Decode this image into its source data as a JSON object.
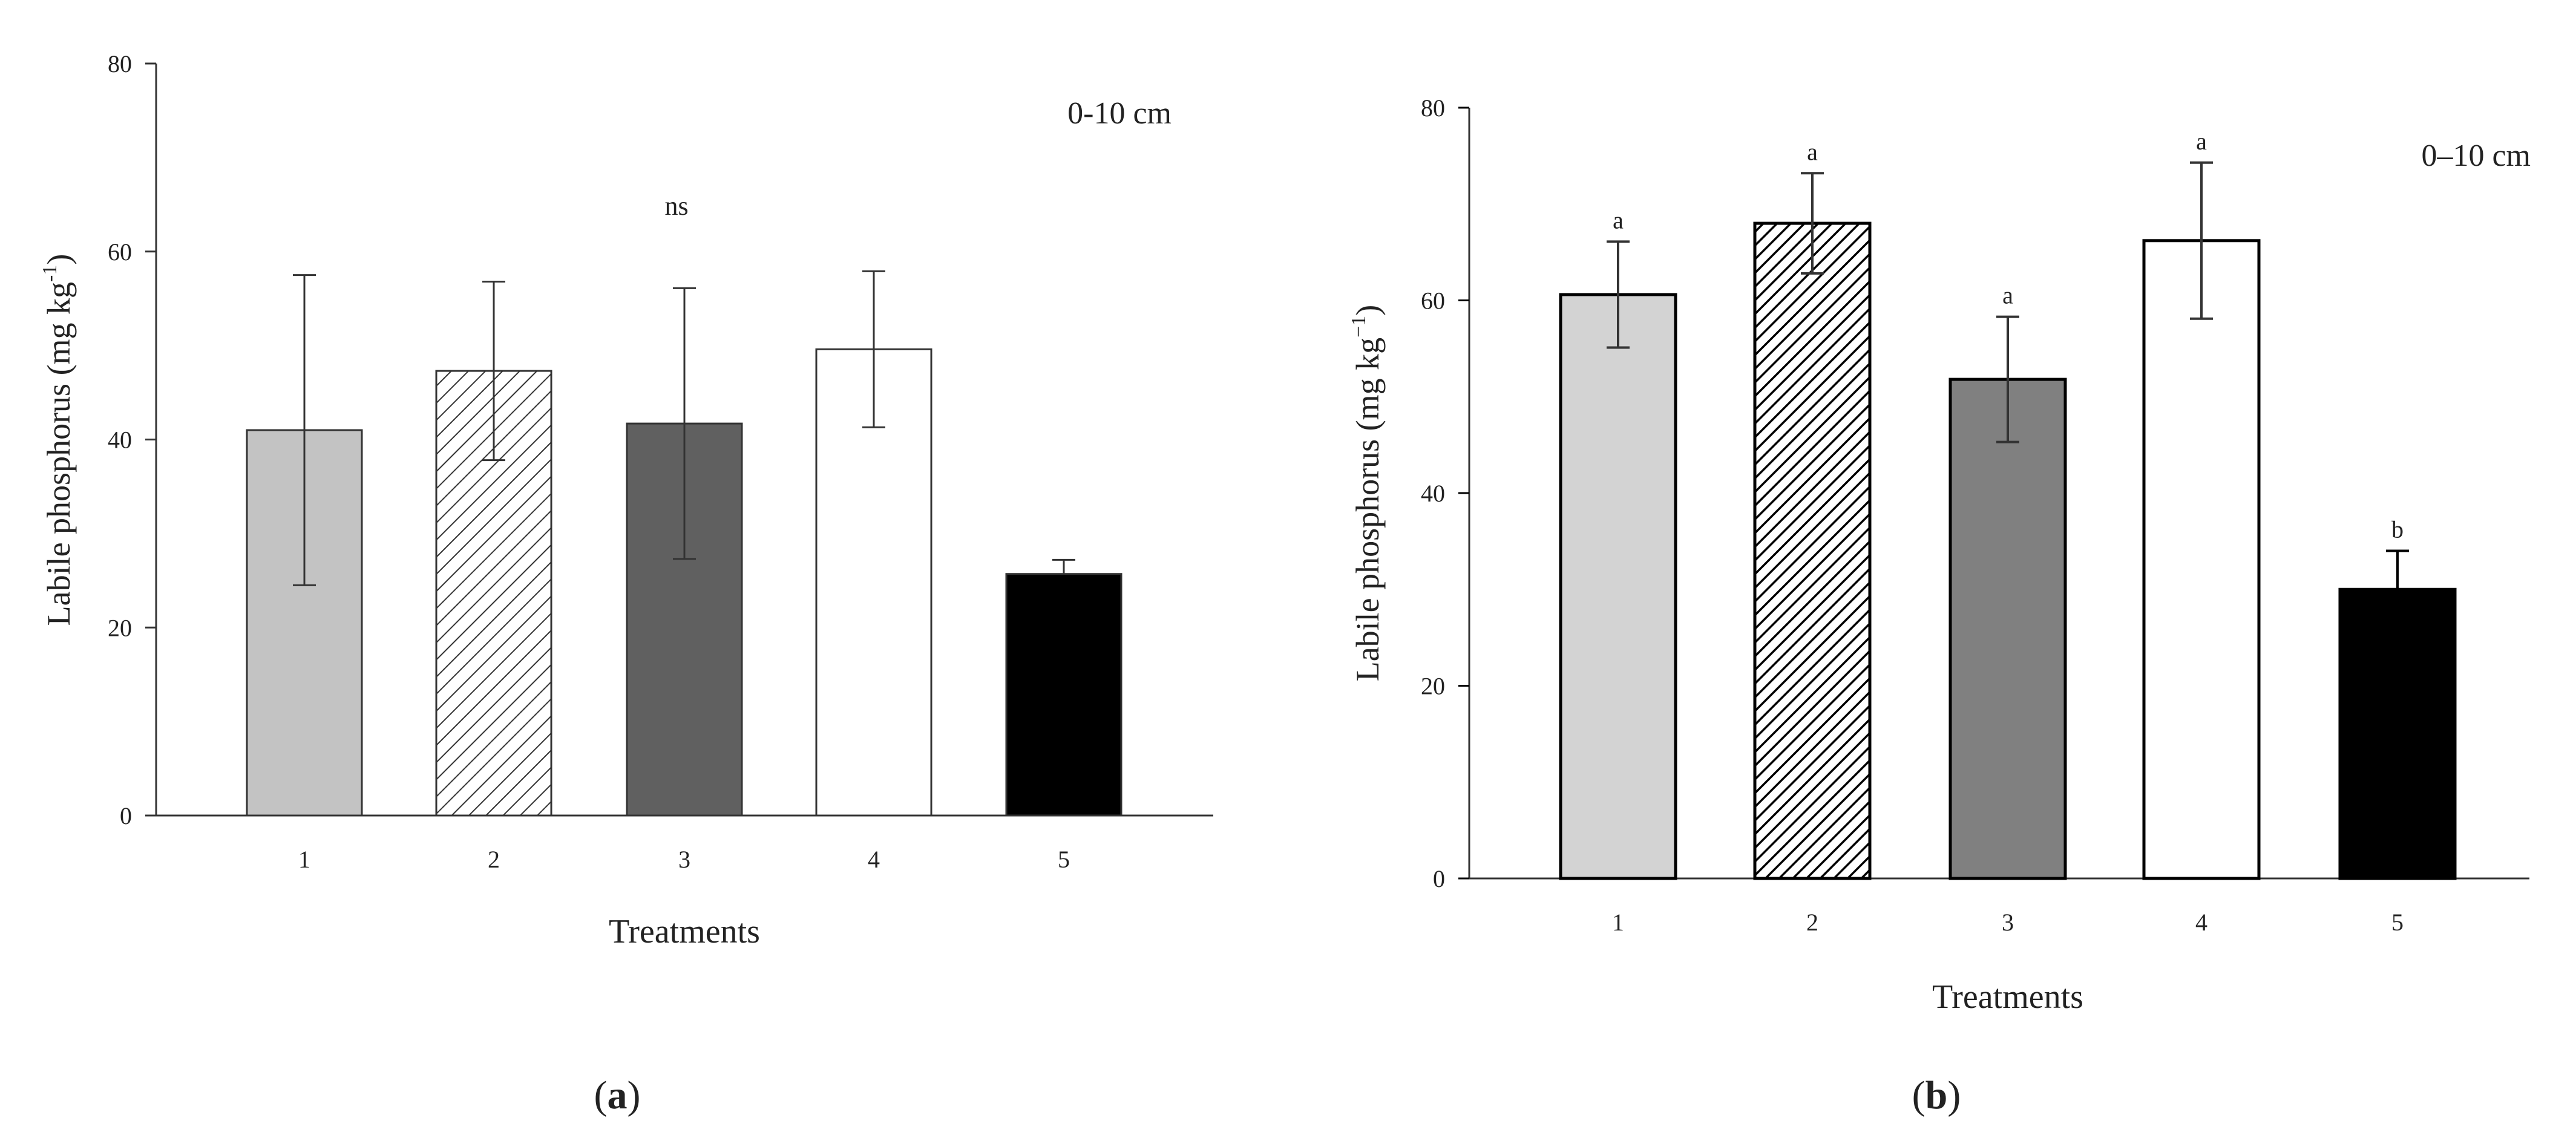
{
  "chart_data": [
    {
      "type": "bar",
      "panel_label": "a",
      "title": "",
      "depth_label": "0-10 cm",
      "significance_label": "ns",
      "xlabel": "Treatments",
      "ylabel": "Labile phosphorus (mg kg",
      "ylabel_sup": "-1",
      "ylabel_close": ")",
      "ylim": [
        0,
        80
      ],
      "yticks": [
        "0",
        "20",
        "40",
        "60",
        "80"
      ],
      "yticks_values": [
        0,
        20,
        40,
        60,
        80
      ],
      "categories": [
        "1",
        "2",
        "3",
        "4",
        "5"
      ],
      "values": [
        41,
        47.3,
        41.7,
        49.6,
        25.7
      ],
      "errors": [
        16.5,
        9.5,
        14.4,
        8.3,
        1.5
      ],
      "fill_styles": [
        "light-gray",
        "hatch",
        "dark-gray",
        "white",
        "black"
      ],
      "fill_colors": [
        "#c3c3c3",
        "#ffffff",
        "#606060",
        "#ffffff",
        "#000000"
      ],
      "grid": false
    },
    {
      "type": "bar",
      "panel_label": "b",
      "title": "",
      "depth_label": "0–10 cm",
      "xlabel": "Treatments",
      "ylabel": "Labile phosphorus (mg kg",
      "ylabel_sup": "−1",
      "ylabel_close": ")",
      "ylim": [
        0,
        80
      ],
      "yticks": [
        "0",
        "20",
        "40",
        "60",
        "80"
      ],
      "yticks_values": [
        0,
        20,
        40,
        60,
        80
      ],
      "categories": [
        "1",
        "2",
        "3",
        "4",
        "5"
      ],
      "values": [
        60.6,
        68,
        51.8,
        66.2,
        30
      ],
      "errors": [
        5.5,
        5.2,
        6.5,
        8.1,
        4
      ],
      "letters": [
        "a",
        "a",
        "a",
        "a",
        "b"
      ],
      "fill_styles": [
        "light-gray",
        "hatch-dense",
        "gray",
        "white",
        "black"
      ],
      "fill_colors": [
        "#d3d3d3",
        "#ffffff",
        "#808080",
        "#ffffff",
        "#000000"
      ],
      "grid": false
    }
  ],
  "captions": {
    "a": "a",
    "b": "b"
  }
}
